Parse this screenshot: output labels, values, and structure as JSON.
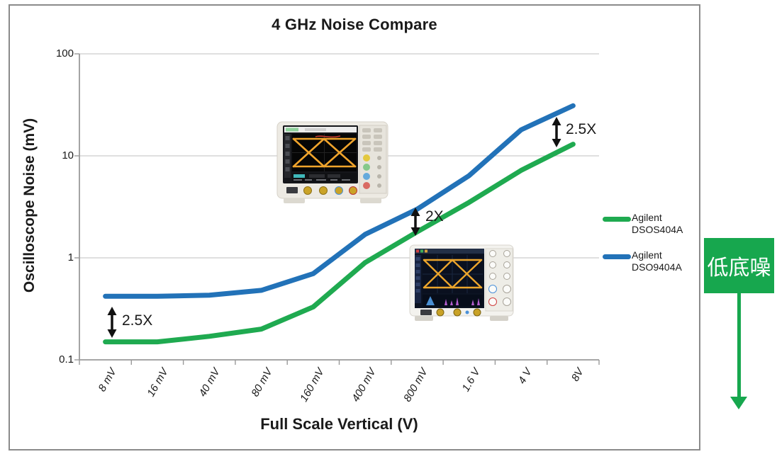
{
  "title": "4 GHz Noise Compare",
  "chart_data": {
    "type": "line",
    "title": "4 GHz Noise Compare",
    "xlabel": "Full Scale Vertical (V)",
    "ylabel": "Oscilloscope Noise (mV)",
    "y_scale": "log",
    "ylim": [
      0.1,
      100
    ],
    "y_ticks": [
      "100",
      "10",
      "1",
      "0.1"
    ],
    "grid": "horizontal",
    "legend_position": "right",
    "categories": [
      "8 mV",
      "16 mV",
      "40 mV",
      "80 mV",
      "160 mV",
      "400 mV",
      "800 mV",
      "1.6 V",
      "4 V",
      "8V"
    ],
    "series": [
      {
        "name": "Agilent DSOS404A",
        "color": "#1faa50",
        "values": [
          0.15,
          0.15,
          0.17,
          0.2,
          0.33,
          0.9,
          1.8,
          3.5,
          7.2,
          13
        ]
      },
      {
        "name": "Agilent DSO9404A",
        "color": "#2272b8",
        "values": [
          0.42,
          0.42,
          0.43,
          0.48,
          0.7,
          1.7,
          3.0,
          6.4,
          18,
          31
        ]
      }
    ],
    "annotations": [
      {
        "label": "2.5X"
      },
      {
        "label": "2X"
      },
      {
        "label": "2.5X"
      }
    ]
  },
  "legend": {
    "items": [
      {
        "line1": "Agilent",
        "line2": "DSOS404A",
        "color": "#1faa50"
      },
      {
        "line1": "Agilent",
        "line2": "DSO9404A",
        "color": "#2272b8"
      }
    ]
  },
  "note": {
    "text": "低底噪",
    "box_color": "#17a74e"
  },
  "colors": {
    "green_series": "#1faa50",
    "blue_series": "#2272b8",
    "axis": "#9a9a9a",
    "gridline": "#cccccc",
    "frame_border": "#8b8b8b"
  }
}
